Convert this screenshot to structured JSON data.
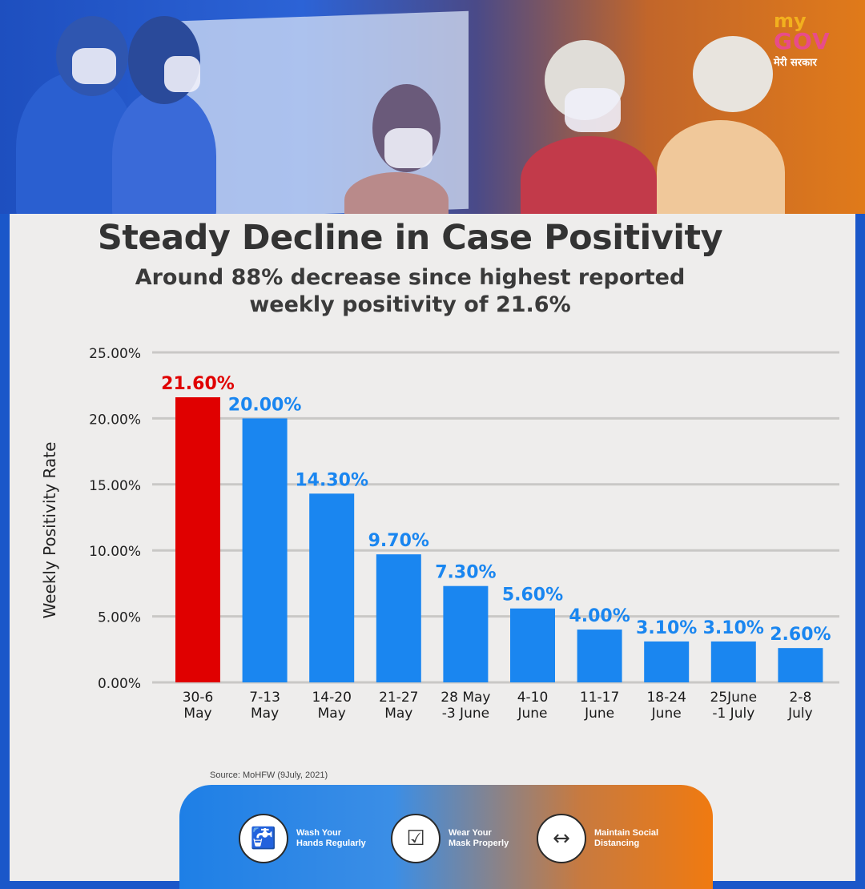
{
  "logo": {
    "my": "my",
    "gov": "GOV",
    "tagline": "मेरी सरकार"
  },
  "title": "Steady Decline in Case Positivity",
  "subtitle_line1": "Around 88% decrease since highest reported",
  "subtitle_line2": "weekly positivity of 21.6%",
  "source": "Source: MoHFW (9July, 2021)",
  "tips": [
    {
      "icon": "hand-wash-icon",
      "line1": "Wash Your",
      "line2": "Hands Regularly"
    },
    {
      "icon": "face-mask-icon",
      "line1": "Wear Your",
      "line2": "Mask Properly"
    },
    {
      "icon": "social-distancing-icon",
      "line1": "Maintain Social",
      "line2": "Distancing"
    }
  ],
  "colors": {
    "highlight": "#e00000",
    "bar": "#1a86f0",
    "label_blue": "#1a86f0",
    "title": "#333333"
  },
  "chart_data": {
    "type": "bar",
    "ylabel": "Weekly Positivity Rate",
    "xlabel": "",
    "ylim": [
      0,
      25
    ],
    "yticks": [
      "0.00%",
      "5.00%",
      "10.00%",
      "15.00%",
      "20.00%",
      "25.00%"
    ],
    "grid": true,
    "categories": [
      [
        "30-6",
        "May"
      ],
      [
        "7-13",
        "May"
      ],
      [
        "14-20",
        "May"
      ],
      [
        "21-27",
        "May"
      ],
      [
        "28 May",
        "-3 June"
      ],
      [
        "4-10",
        "June"
      ],
      [
        "11-17",
        "June"
      ],
      [
        "18-24",
        "June"
      ],
      [
        "25June",
        "-1 July"
      ],
      [
        "2-8",
        "July"
      ]
    ],
    "values": [
      21.6,
      20.0,
      14.3,
      9.7,
      7.3,
      5.6,
      4.0,
      3.1,
      3.1,
      2.6
    ],
    "value_labels": [
      "21.60%",
      "20.00%",
      "14.30%",
      "9.70%",
      "7.30%",
      "5.60%",
      "4.00%",
      "3.10%",
      "3.10%",
      "2.60%"
    ],
    "highlight_index": 0
  }
}
